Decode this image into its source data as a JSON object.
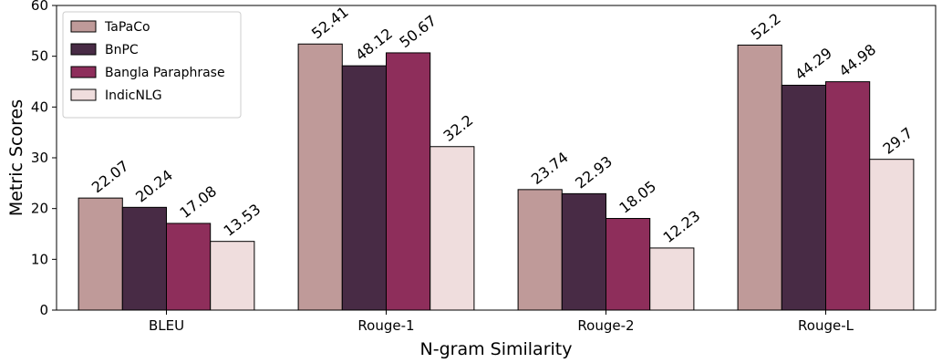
{
  "chart_data": {
    "type": "bar",
    "title": "",
    "xlabel": "N-gram Similarity",
    "ylabel": "Metric Scores",
    "ylim": [
      0,
      60
    ],
    "yticks": [
      0,
      10,
      20,
      30,
      40,
      50,
      60
    ],
    "grid": false,
    "legend_position": "top-left",
    "categories": [
      "BLEU",
      "Rouge-1",
      "Rouge-2",
      "Rouge-L"
    ],
    "series": [
      {
        "name": "TaPaCo",
        "color": "#bf9a99",
        "values": [
          22.07,
          52.41,
          23.74,
          52.2
        ]
      },
      {
        "name": "BnPC",
        "color": "#482b45",
        "values": [
          20.24,
          48.12,
          22.93,
          44.29
        ]
      },
      {
        "name": "Bangla Paraphrase",
        "color": "#8e2e5b",
        "values": [
          17.08,
          50.67,
          18.05,
          44.98
        ]
      },
      {
        "name": "IndicNLG",
        "color": "#efdddd",
        "values": [
          13.53,
          32.2,
          12.23,
          29.7
        ]
      }
    ]
  }
}
